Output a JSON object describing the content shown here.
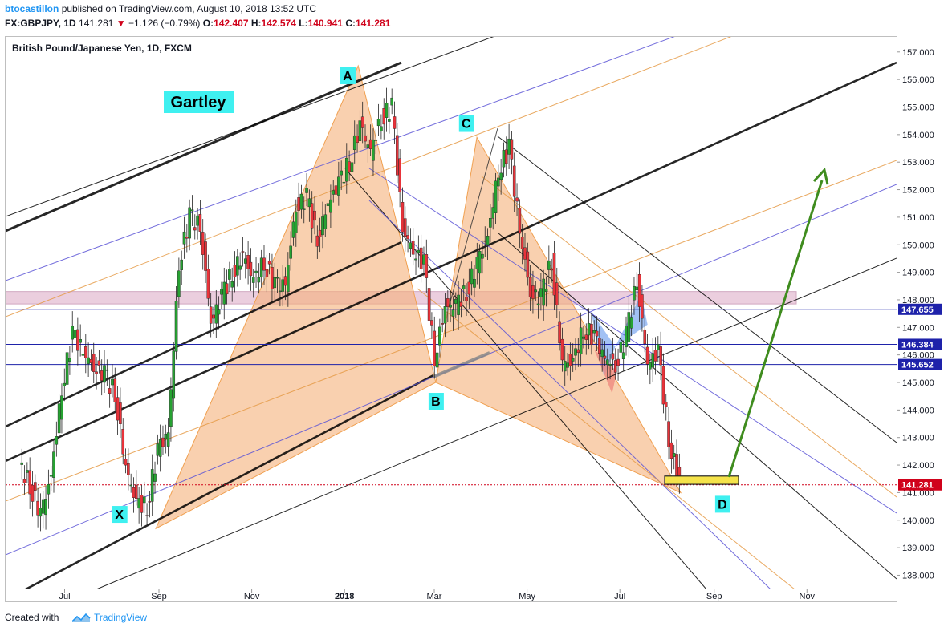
{
  "header": {
    "author": "btocastillon",
    "published_text": "published on TradingView.com, August 10, 2018 13:52 UTC",
    "symbol": "FX:GBPJPY, 1D",
    "last": "141.281",
    "change_arrow": "▼",
    "change": "−1.126 (−0.79%)",
    "open_label": "O:",
    "open": "142.407",
    "high_label": "H:",
    "high": "142.574",
    "low_label": "L:",
    "low": "140.941",
    "close_label": "C:",
    "close": "141.281"
  },
  "chart_title": "British Pound/Japanese Yen, 1D, FXCM",
  "chart_data": {
    "type": "line",
    "title": "British Pound/Japanese Yen, 1D, FXCM",
    "pattern_label": "Gartley",
    "x_tick_labels": [
      "Jul",
      "Sep",
      "Nov",
      "2018",
      "Mar",
      "May",
      "Jul",
      "Sep",
      "Nov"
    ],
    "y_tick_labels": [
      "157.000",
      "156.000",
      "155.000",
      "154.000",
      "153.000",
      "152.000",
      "151.000",
      "150.000",
      "149.000",
      "148.000",
      "147.000",
      "146.000",
      "145.000",
      "144.000",
      "143.000",
      "142.000",
      "141.000",
      "140.000",
      "139.000",
      "138.000"
    ],
    "ylim": [
      137.5,
      158.2
    ],
    "price_labels": [
      {
        "value": 147.655,
        "text": "147.655",
        "color": "#1e22aa"
      },
      {
        "value": 146.384,
        "text": "146.384",
        "color": "#1e22aa"
      },
      {
        "value": 145.652,
        "text": "145.652",
        "color": "#1e22aa"
      },
      {
        "value": 141.281,
        "text": "141.281",
        "color": "#d0021b"
      }
    ],
    "pattern_points": [
      {
        "label": "X",
        "date": "2017-08-30",
        "price": 139.7
      },
      {
        "label": "A",
        "date": "2018-01-10",
        "price": 156.5
      },
      {
        "label": "B",
        "date": "2018-03-02",
        "price": 145.0
      },
      {
        "label": "C",
        "date": "2018-03-29",
        "price": 153.9
      },
      {
        "label": "D",
        "date": "2018-08-10",
        "price": 141.0
      }
    ],
    "close_series": [
      {
        "date": "2017-06-02",
        "close": 142.0
      },
      {
        "date": "2017-06-09",
        "close": 141.3
      },
      {
        "date": "2017-06-16",
        "close": 140.2
      },
      {
        "date": "2017-06-23",
        "close": 141.6
      },
      {
        "date": "2017-06-30",
        "close": 144.8
      },
      {
        "date": "2017-07-07",
        "close": 146.7
      },
      {
        "date": "2017-07-14",
        "close": 146.2
      },
      {
        "date": "2017-07-21",
        "close": 145.5
      },
      {
        "date": "2017-07-28",
        "close": 145.3
      },
      {
        "date": "2017-08-04",
        "close": 144.6
      },
      {
        "date": "2017-08-11",
        "close": 141.9
      },
      {
        "date": "2017-08-18",
        "close": 140.6
      },
      {
        "date": "2017-08-25",
        "close": 140.5
      },
      {
        "date": "2017-09-01",
        "close": 142.5
      },
      {
        "date": "2017-09-08",
        "close": 143.2
      },
      {
        "date": "2017-09-15",
        "close": 149.3
      },
      {
        "date": "2017-09-22",
        "close": 151.0
      },
      {
        "date": "2017-09-29",
        "close": 150.7
      },
      {
        "date": "2017-10-06",
        "close": 147.2
      },
      {
        "date": "2017-10-13",
        "close": 148.1
      },
      {
        "date": "2017-10-20",
        "close": 149.0
      },
      {
        "date": "2017-10-27",
        "close": 149.6
      },
      {
        "date": "2017-11-03",
        "close": 148.7
      },
      {
        "date": "2017-11-10",
        "close": 149.4
      },
      {
        "date": "2017-11-17",
        "close": 148.5
      },
      {
        "date": "2017-11-24",
        "close": 148.6
      },
      {
        "date": "2017-12-01",
        "close": 151.4
      },
      {
        "date": "2017-12-08",
        "close": 151.7
      },
      {
        "date": "2017-12-15",
        "close": 150.2
      },
      {
        "date": "2017-12-22",
        "close": 151.5
      },
      {
        "date": "2017-12-29",
        "close": 152.2
      },
      {
        "date": "2018-01-05",
        "close": 153.0
      },
      {
        "date": "2018-01-12",
        "close": 154.3
      },
      {
        "date": "2018-01-19",
        "close": 153.4
      },
      {
        "date": "2018-01-26",
        "close": 154.6
      },
      {
        "date": "2018-02-02",
        "close": 155.0
      },
      {
        "date": "2018-02-09",
        "close": 150.6
      },
      {
        "date": "2018-02-16",
        "close": 149.8
      },
      {
        "date": "2018-02-23",
        "close": 149.3
      },
      {
        "date": "2018-03-02",
        "close": 145.9
      },
      {
        "date": "2018-03-09",
        "close": 147.7
      },
      {
        "date": "2018-03-16",
        "close": 147.8
      },
      {
        "date": "2018-03-23",
        "close": 148.3
      },
      {
        "date": "2018-03-30",
        "close": 149.3
      },
      {
        "date": "2018-04-06",
        "close": 150.3
      },
      {
        "date": "2018-04-13",
        "close": 152.7
      },
      {
        "date": "2018-04-20",
        "close": 153.5
      },
      {
        "date": "2018-04-27",
        "close": 150.6
      },
      {
        "date": "2018-05-04",
        "close": 148.2
      },
      {
        "date": "2018-05-11",
        "close": 148.1
      },
      {
        "date": "2018-05-18",
        "close": 149.4
      },
      {
        "date": "2018-05-25",
        "close": 145.7
      },
      {
        "date": "2018-06-01",
        "close": 145.7
      },
      {
        "date": "2018-06-08",
        "close": 147.0
      },
      {
        "date": "2018-06-15",
        "close": 146.6
      },
      {
        "date": "2018-06-22",
        "close": 145.9
      },
      {
        "date": "2018-06-29",
        "close": 145.6
      },
      {
        "date": "2018-07-06",
        "close": 146.7
      },
      {
        "date": "2018-07-13",
        "close": 148.7
      },
      {
        "date": "2018-07-20",
        "close": 145.7
      },
      {
        "date": "2018-07-27",
        "close": 146.1
      },
      {
        "date": "2018-08-03",
        "close": 143.0
      },
      {
        "date": "2018-08-10",
        "close": 141.281
      }
    ]
  },
  "footer": {
    "created_with": "Created with",
    "brand": "TradingView"
  },
  "colors": {
    "up_candle": "#26a232",
    "down_candle": "#e8333a",
    "pattern_fill": "#f5b07a",
    "blue_line": "#1e22aa",
    "zone_fill": "#e8c6d9",
    "target_arrow": "#3f8c1e",
    "label_box": "#3ff0f0"
  }
}
